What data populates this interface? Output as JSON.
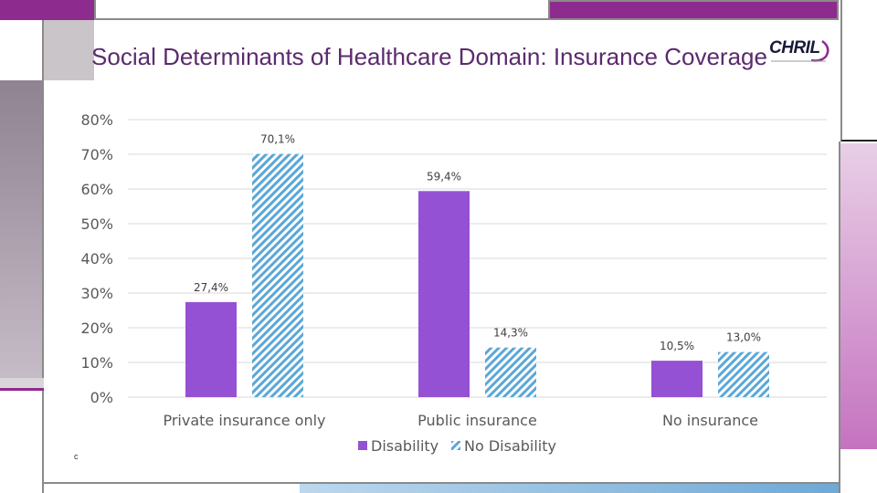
{
  "logo_text": "CHRIL",
  "footnote": "c",
  "colors": {
    "disability": "#9551d3",
    "no_disability": "#5aa7d6",
    "title": "#5b2a6e",
    "purple_bar": "#8e2b8f",
    "pink_panel": "#e6c4e3",
    "gray_panel": "#a59aa6"
  },
  "chart_data": {
    "type": "bar",
    "title": "Social Determinants of Healthcare Domain: Insurance Coverage",
    "categories": [
      "Private insurance only",
      "Public insurance",
      "No insurance"
    ],
    "series": [
      {
        "name": "Disability",
        "values": [
          27.4,
          59.4,
          10.5
        ],
        "labels": [
          "27,4%",
          "59,4%",
          "10,5%"
        ],
        "pattern": "solid"
      },
      {
        "name": "No Disability",
        "values": [
          70.1,
          14.3,
          13.0
        ],
        "labels": [
          "70,1%",
          "14,3%",
          "13,0%"
        ],
        "pattern": "hatched"
      }
    ],
    "yticks": [
      "0%",
      "10%",
      "20%",
      "30%",
      "40%",
      "50%",
      "60%",
      "70%",
      "80%"
    ],
    "ylim": [
      0,
      80
    ],
    "grid": true,
    "legend": "bottom",
    "xlabel": "",
    "ylabel": ""
  }
}
